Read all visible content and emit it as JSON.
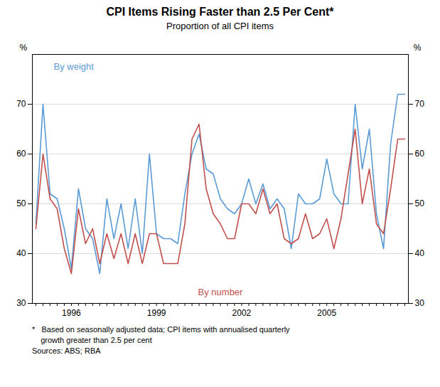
{
  "chart_data": {
    "type": "line",
    "title": "CPI Items Rising Faster than 2.5 Per Cent*",
    "subtitle": "Proportion of all CPI items",
    "ylabel": "%",
    "y2label": "%",
    "footnote": [
      "*   Based on seasonally adjusted data; CPI items with annualised quarterly",
      "    growth greater than 2.5 per cent",
      "Sources: ABS; RBA"
    ],
    "categories": [
      null,
      null,
      null,
      null,
      null,
      "1996",
      null,
      null,
      null,
      null,
      null,
      null,
      null,
      null,
      null,
      null,
      null,
      "1999",
      null,
      null,
      null,
      null,
      null,
      null,
      null,
      null,
      null,
      null,
      null,
      "2002",
      null,
      null,
      null,
      null,
      null,
      null,
      null,
      null,
      null,
      null,
      null,
      "2005",
      null,
      null,
      null,
      null,
      null,
      null,
      null,
      null,
      null,
      null,
      null
    ],
    "series": [
      {
        "name": "By weight",
        "color": "#5b9bd5",
        "values": [
          46,
          70,
          52,
          51,
          45,
          37,
          53,
          45,
          43,
          36,
          51,
          43,
          50,
          41,
          51,
          40,
          60,
          44,
          43,
          43,
          42,
          52,
          60,
          64,
          57,
          56,
          51,
          49,
          48,
          50,
          55,
          50,
          54,
          49,
          51,
          49,
          41,
          52,
          50,
          50,
          51,
          59,
          52,
          50,
          50,
          70,
          57,
          65,
          48,
          41,
          62,
          72,
          72
        ]
      },
      {
        "name": "By number",
        "color": "#c0504d",
        "values": [
          45,
          60,
          51,
          49,
          41,
          36,
          49,
          42,
          45,
          38,
          44,
          39,
          44,
          38,
          44,
          38,
          44,
          44,
          38,
          38,
          38,
          46,
          63,
          66,
          53,
          48,
          46,
          43,
          43,
          50,
          50,
          48,
          53,
          48,
          50,
          43,
          42,
          43,
          48,
          43,
          44,
          47,
          41,
          47,
          56,
          65,
          50,
          57,
          46,
          44,
          53,
          63,
          63
        ]
      }
    ],
    "ylim": [
      30,
      80
    ],
    "yticks": [
      30,
      40,
      50,
      60,
      70
    ],
    "y2lim": [
      30,
      80
    ],
    "y2ticks": [
      30,
      40,
      50,
      60,
      70
    ],
    "grid": true
  }
}
